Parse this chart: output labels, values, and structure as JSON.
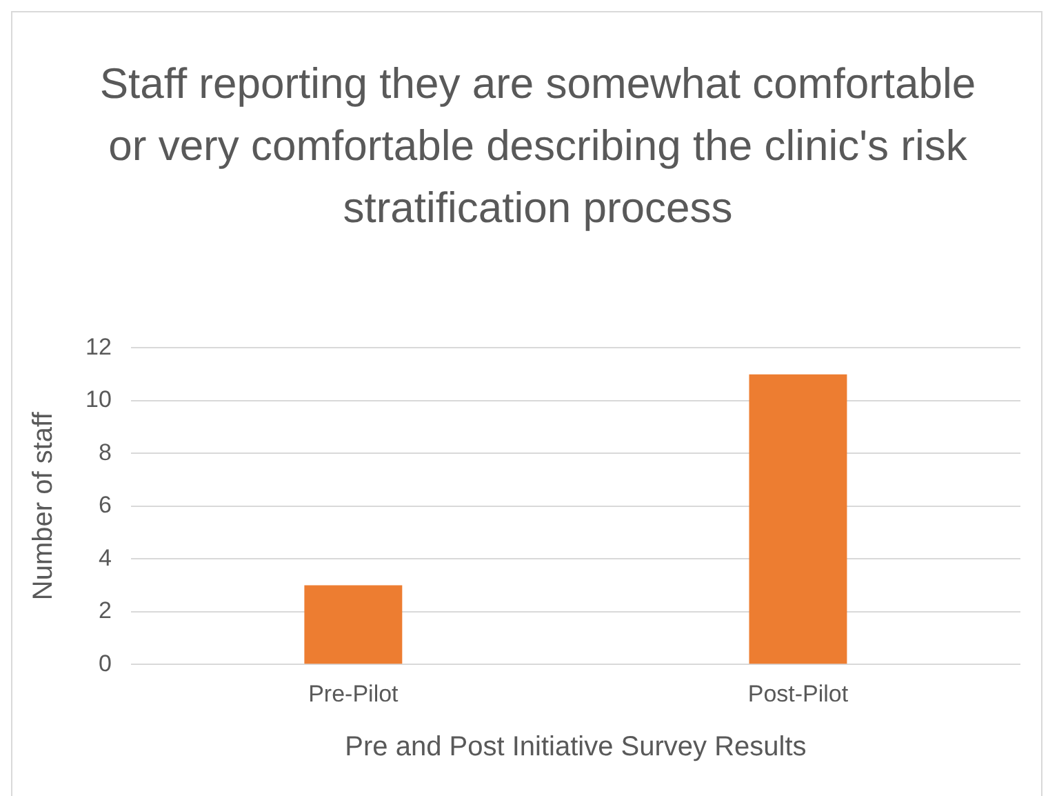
{
  "chart_data": {
    "type": "bar",
    "title": "Staff reporting they are somewhat comfortable or very comfortable describing the clinic's risk stratification process",
    "xlabel": "Pre and Post Initiative Survey Results",
    "ylabel": "Number of staff",
    "categories": [
      "Pre-Pilot",
      "Post-Pilot"
    ],
    "values": [
      3,
      11
    ],
    "color": "#ed7d31",
    "ylim": [
      0,
      12
    ],
    "yticks": [
      0,
      2,
      4,
      6,
      8,
      10,
      12
    ],
    "grid": "y",
    "legend": false
  }
}
